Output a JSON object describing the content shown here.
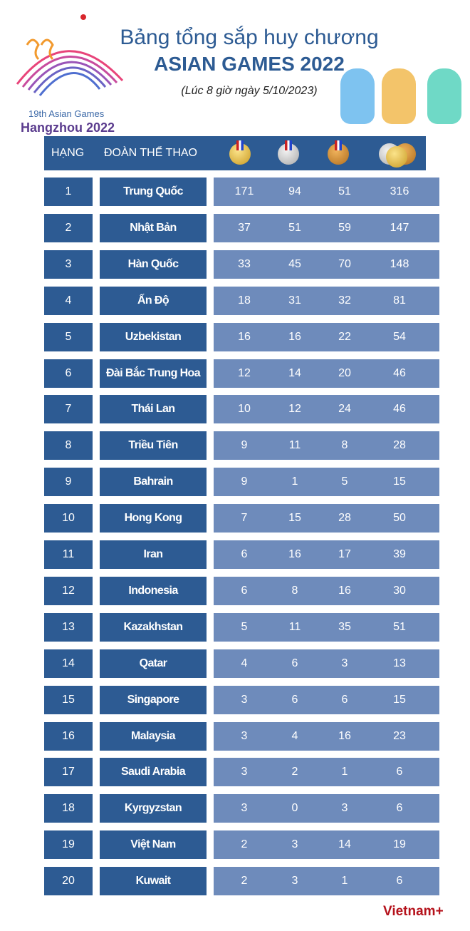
{
  "logo": {
    "line1": "19th Asian Games",
    "line2": "Hangzhou 2022"
  },
  "title": {
    "line1": "Bảng tổng sắp huy chương",
    "line2": "ASIAN GAMES 2022",
    "subtitle": "(Lúc 8 giờ ngày 5/10/2023)"
  },
  "table": {
    "headers": {
      "rank": "HẠNG",
      "team": "ĐOÀN THỂ THAO",
      "gold_icon": "gold-medal-icon",
      "silver_icon": "silver-medal-icon",
      "bronze_icon": "bronze-medal-icon",
      "total_icon": "medals-total-icon"
    },
    "rows": [
      {
        "rank": "1",
        "team": "Trung Quốc",
        "gold": "171",
        "silver": "94",
        "bronze": "51",
        "total": "316"
      },
      {
        "rank": "2",
        "team": "Nhật Bản",
        "gold": "37",
        "silver": "51",
        "bronze": "59",
        "total": "147"
      },
      {
        "rank": "3",
        "team": "Hàn Quốc",
        "gold": "33",
        "silver": "45",
        "bronze": "70",
        "total": "148"
      },
      {
        "rank": "4",
        "team": "Ấn Độ",
        "gold": "18",
        "silver": "31",
        "bronze": "32",
        "total": "81"
      },
      {
        "rank": "5",
        "team": "Uzbekistan",
        "gold": "16",
        "silver": "16",
        "bronze": "22",
        "total": "54"
      },
      {
        "rank": "6",
        "team": "Đài Bắc Trung Hoa",
        "gold": "12",
        "silver": "14",
        "bronze": "20",
        "total": "46"
      },
      {
        "rank": "7",
        "team": "Thái Lan",
        "gold": "10",
        "silver": "12",
        "bronze": "24",
        "total": "46"
      },
      {
        "rank": "8",
        "team": "Triều Tiên",
        "gold": "9",
        "silver": "11",
        "bronze": "8",
        "total": "28"
      },
      {
        "rank": "9",
        "team": "Bahrain",
        "gold": "9",
        "silver": "1",
        "bronze": "5",
        "total": "15"
      },
      {
        "rank": "10",
        "team": "Hong Kong",
        "gold": "7",
        "silver": "15",
        "bronze": "28",
        "total": "50"
      },
      {
        "rank": "11",
        "team": "Iran",
        "gold": "6",
        "silver": "16",
        "bronze": "17",
        "total": "39"
      },
      {
        "rank": "12",
        "team": "Indonesia",
        "gold": "6",
        "silver": "8",
        "bronze": "16",
        "total": "30"
      },
      {
        "rank": "13",
        "team": "Kazakhstan",
        "gold": "5",
        "silver": "11",
        "bronze": "35",
        "total": "51"
      },
      {
        "rank": "14",
        "team": "Qatar",
        "gold": "4",
        "silver": "6",
        "bronze": "3",
        "total": "13"
      },
      {
        "rank": "15",
        "team": "Singapore",
        "gold": "3",
        "silver": "6",
        "bronze": "6",
        "total": "15"
      },
      {
        "rank": "16",
        "team": "Malaysia",
        "gold": "3",
        "silver": "4",
        "bronze": "16",
        "total": "23"
      },
      {
        "rank": "17",
        "team": "Saudi Arabia",
        "gold": "3",
        "silver": "2",
        "bronze": "1",
        "total": "6"
      },
      {
        "rank": "18",
        "team": "Kyrgyzstan",
        "gold": "3",
        "silver": "0",
        "bronze": "3",
        "total": "6"
      },
      {
        "rank": "19",
        "team": "Việt Nam",
        "gold": "2",
        "silver": "3",
        "bronze": "14",
        "total": "19"
      },
      {
        "rank": "20",
        "team": "Kuwait",
        "gold": "2",
        "silver": "3",
        "bronze": "1",
        "total": "6"
      }
    ]
  },
  "colors": {
    "dark_blue": "#2d5b93",
    "light_blue": "#6e8bbb",
    "brand_red": "#b5121b"
  },
  "footer": {
    "brand": "Vietnam+"
  }
}
